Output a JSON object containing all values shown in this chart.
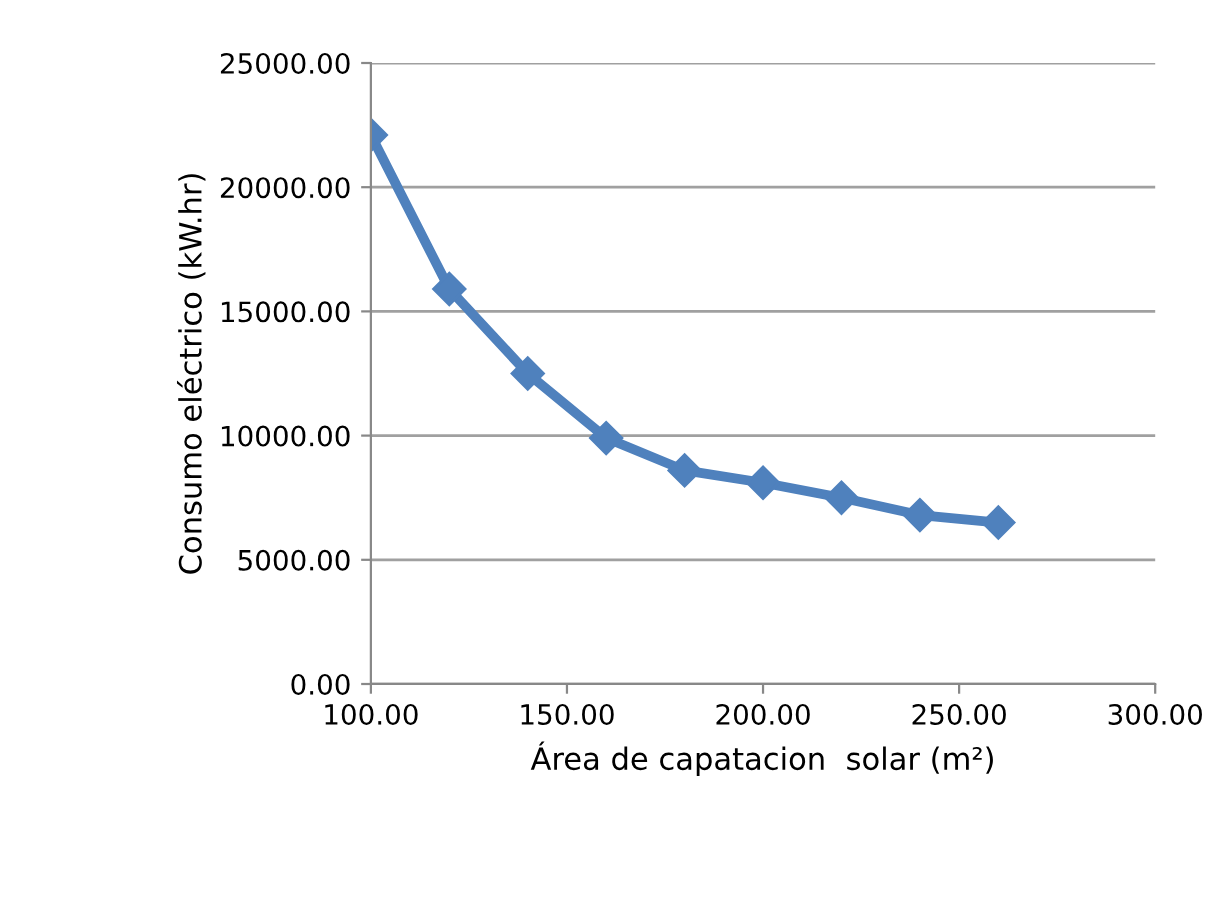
{
  "chart_data": {
    "type": "line",
    "xlabel": "Área de capatacion  solar (m²)",
    "ylabel": "Consumo eléctrico (kW.hr)",
    "x": [
      100,
      120,
      140,
      160,
      180,
      200,
      220,
      240,
      260
    ],
    "series": [
      {
        "color": "#4f81bd",
        "values": [
          22100,
          15900,
          12500,
          9900,
          8600,
          8100,
          7500,
          6800,
          6500
        ]
      }
    ],
    "xlim": [
      100,
      300
    ],
    "xticks": [
      {
        "value": 100,
        "label": "100.00"
      },
      {
        "value": 150,
        "label": "150.00"
      },
      {
        "value": 200,
        "label": "200.00"
      },
      {
        "value": 250,
        "label": "250.00"
      },
      {
        "value": 300,
        "label": "300.00"
      }
    ],
    "ylim": [
      0,
      25000
    ],
    "yticks": [
      {
        "value": 0,
        "label": "0.00"
      },
      {
        "value": 5000,
        "label": "5000.00"
      },
      {
        "value": 10000,
        "label": "10000.00"
      },
      {
        "value": 15000,
        "label": "15000.00"
      },
      {
        "value": 20000,
        "label": "20000.00"
      },
      {
        "value": 25000,
        "label": "25000.00"
      }
    ],
    "grid": "y",
    "marker": "diamond",
    "line_style": "solid",
    "legend": false
  }
}
